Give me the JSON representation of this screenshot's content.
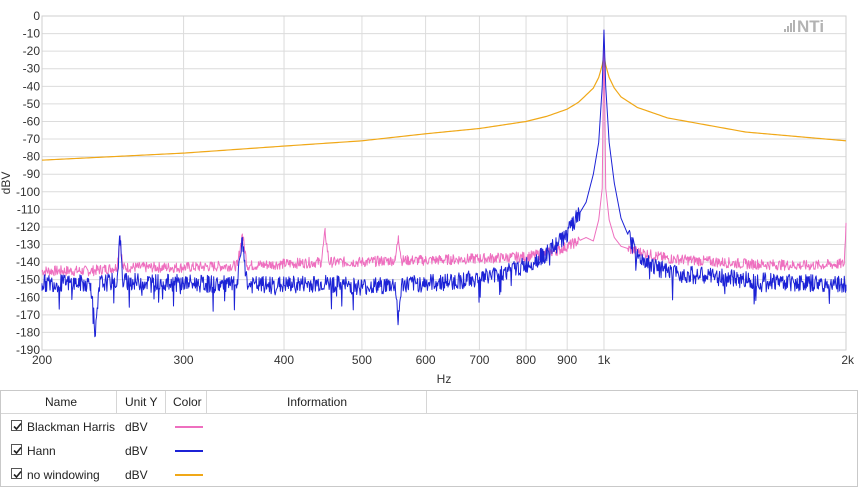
{
  "chart_data": {
    "type": "line",
    "title": "",
    "xlabel": "Hz",
    "ylabel": "dBV",
    "x_scale": "log",
    "xlim": [
      200,
      2000
    ],
    "ylim": [
      -190,
      0
    ],
    "x_ticks": [
      200,
      300,
      400,
      500,
      600,
      700,
      800,
      900,
      1000,
      2000
    ],
    "x_tick_labels": [
      "200",
      "300",
      "400",
      "500",
      "600",
      "700",
      "800",
      "900",
      "1k",
      "2k"
    ],
    "y_ticks": [
      0,
      -10,
      -20,
      -30,
      -40,
      -50,
      -60,
      -70,
      -80,
      -90,
      -100,
      -110,
      -120,
      -130,
      -140,
      -150,
      -160,
      -170,
      -180,
      -190
    ],
    "y_tick_labels": [
      "0",
      "-10",
      "-20",
      "-30",
      "-40",
      "-50",
      "-60",
      "-70",
      "-80",
      "-90",
      "-100",
      "-110",
      "-120",
      "-130",
      "-140",
      "-150",
      "-160",
      "-170",
      "-180",
      "-190"
    ],
    "grid": true,
    "series": [
      {
        "name": "Blackman Harris",
        "color": "#ee6fbf",
        "x": [
          200,
          230,
          248,
          250,
          252,
          300,
          350,
          355,
          360,
          400,
          445,
          450,
          455,
          500,
          550,
          555,
          560,
          600,
          700,
          800,
          850,
          880,
          920,
          950,
          970,
          985,
          995,
          1000,
          1005,
          1015,
          1030,
          1050,
          1100,
          1200,
          1500,
          1800,
          1990,
          2000
        ],
        "y": [
          -145,
          -145,
          -143,
          -125,
          -143,
          -143,
          -142,
          -124,
          -142,
          -141,
          -140,
          -123,
          -140,
          -140,
          -139,
          -125,
          -139,
          -139,
          -138,
          -137,
          -135,
          -133,
          -129,
          -126,
          -128,
          -116,
          -98,
          -8,
          -98,
          -116,
          -126,
          -131,
          -134,
          -138,
          -141,
          -142,
          -141,
          -118
        ]
      },
      {
        "name": "Hann",
        "color": "#1c22d6",
        "x": [
          200,
          230,
          233,
          236,
          248,
          250,
          252,
          300,
          350,
          355,
          360,
          400,
          450,
          500,
          550,
          555,
          560,
          600,
          650,
          700,
          750,
          800,
          850,
          900,
          950,
          970,
          985,
          995,
          1000,
          1005,
          1015,
          1030,
          1050,
          1100,
          1200,
          1500,
          1800,
          2000
        ],
        "y": [
          -152,
          -152,
          -182,
          -152,
          -151,
          -125,
          -151,
          -152,
          -153,
          -126,
          -153,
          -153,
          -152,
          -154,
          -153,
          -173,
          -153,
          -152,
          -151,
          -149,
          -146,
          -142,
          -135,
          -124,
          -106,
          -90,
          -72,
          -40,
          -8,
          -40,
          -72,
          -95,
          -115,
          -137,
          -146,
          -150,
          -152,
          -153
        ]
      },
      {
        "name": "no windowing",
        "color": "#f0a818",
        "x": [
          200,
          300,
          400,
          500,
          600,
          700,
          800,
          850,
          900,
          930,
          950,
          970,
          985,
          995,
          1000,
          1005,
          1015,
          1030,
          1050,
          1100,
          1200,
          1500,
          2000
        ],
        "y": [
          -82,
          -78,
          -74,
          -71,
          -67,
          -64,
          -60,
          -57,
          -53,
          -49,
          -45,
          -41,
          -35,
          -28,
          -22,
          -28,
          -35,
          -41,
          -46,
          -52,
          -58,
          -66,
          -71
        ]
      }
    ]
  },
  "legend": {
    "headers": {
      "name": "Name",
      "unit": "Unit Y",
      "color": "Color",
      "info": "Information"
    },
    "rows": [
      {
        "name": "Blackman Harris",
        "unit": "dBV",
        "checked": true,
        "color": "#ee6fbf"
      },
      {
        "name": "Hann",
        "unit": "dBV",
        "checked": true,
        "color": "#1c22d6"
      },
      {
        "name": "no windowing",
        "unit": "dBV",
        "checked": true,
        "color": "#f0a818"
      }
    ]
  },
  "logo": {
    "brand": "NTi",
    "icon": "nti-logo-icon"
  }
}
